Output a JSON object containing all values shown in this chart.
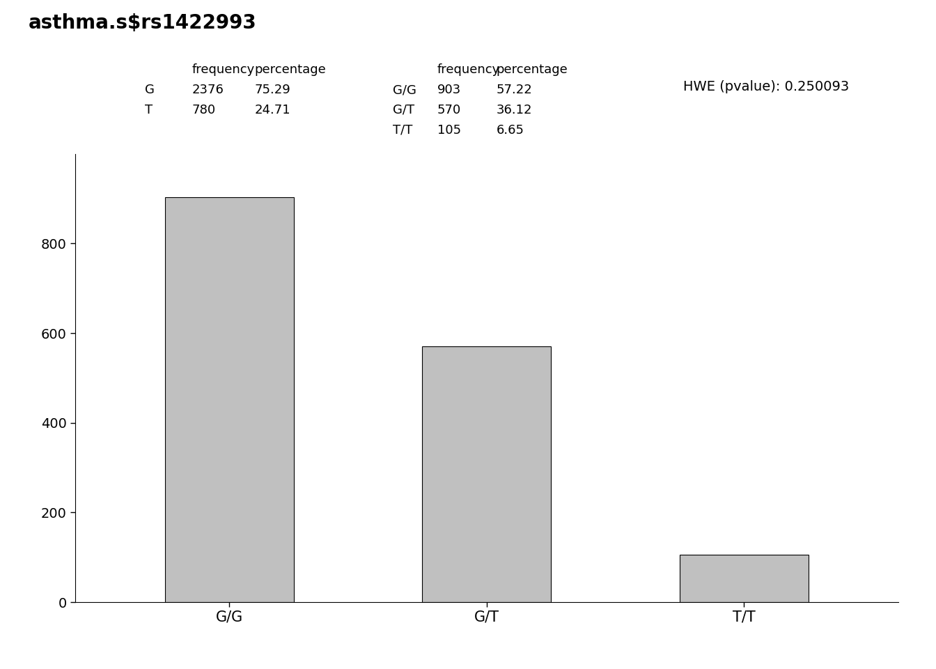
{
  "title": "asthma.s$rs1422993",
  "categories": [
    "G/G",
    "G/T",
    "T/T"
  ],
  "values": [
    903,
    570,
    105
  ],
  "bar_color": "#C0C0C0",
  "bar_edgecolor": "#000000",
  "ylim": [
    0,
    1000
  ],
  "yticks": [
    0,
    200,
    400,
    600,
    800
  ],
  "allele_table_header": [
    "",
    "frequency",
    "percentage"
  ],
  "allele_rows": [
    [
      "G",
      "2376",
      "75.29"
    ],
    [
      "T",
      "780",
      "24.71"
    ]
  ],
  "genotype_table_header": [
    "",
    "frequency",
    "percentage"
  ],
  "genotype_rows": [
    [
      "G/G",
      "903",
      "57.22"
    ],
    [
      "G/T",
      "570",
      "36.12"
    ],
    [
      "T/T",
      "105",
      "6.65"
    ]
  ],
  "hwe_text": "HWE (pvalue): 0.250093",
  "title_fontsize": 20,
  "table_fontsize": 13,
  "tick_fontsize": 14,
  "xlabel_fontsize": 15,
  "background_color": "#FFFFFF"
}
